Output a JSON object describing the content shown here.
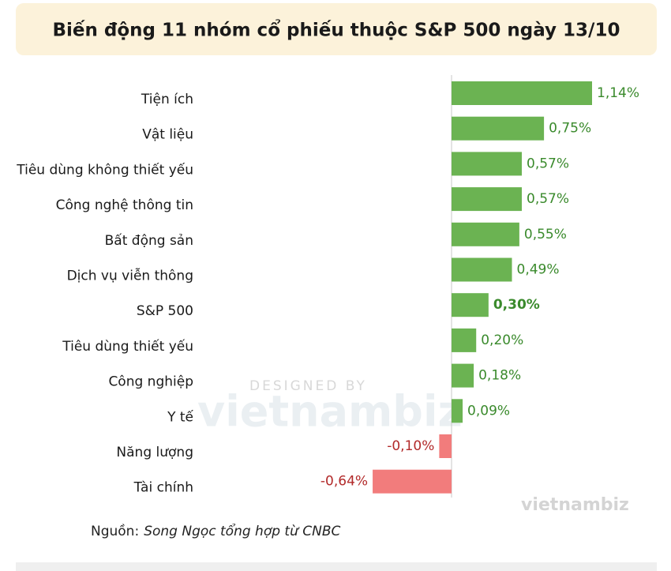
{
  "chart_data": {
    "type": "hbar",
    "title": "Biến động 11 nhóm cổ phiếu thuộc S&P 500 ngày 13/10",
    "categories": [
      "Tiện ích",
      "Vật liệu",
      "Tiêu dùng không thiết yếu",
      "Công nghệ thông tin",
      "Bất động sản",
      "Dịch vụ viễn thông",
      "S&P 500",
      "Tiêu dùng thiết yếu",
      "Công nghiệp",
      "Y tế",
      "Năng lượng",
      "Tài chính"
    ],
    "values": [
      1.14,
      0.75,
      0.57,
      0.57,
      0.55,
      0.49,
      0.3,
      0.2,
      0.18,
      0.09,
      -0.1,
      -0.64
    ],
    "value_labels": [
      "1,14%",
      "0,75%",
      "0,57%",
      "0,57%",
      "0,55%",
      "0,49%",
      "0,30%",
      "0,20%",
      "0,18%",
      "0,09%",
      "-0,10%",
      "-0,64%"
    ],
    "colors": {
      "positive": "#6bb352",
      "negative": "#f27c7c"
    },
    "label_colors": {
      "positive": "#3a8a2c",
      "negative": "#b22a2a"
    },
    "bold_index": 6,
    "source_label": "Nguồn:",
    "source": "Song Ngọc tổng hợp từ CNBC",
    "watermark": {
      "top": "DESIGNED BY",
      "brand": "vietnambiz"
    }
  }
}
